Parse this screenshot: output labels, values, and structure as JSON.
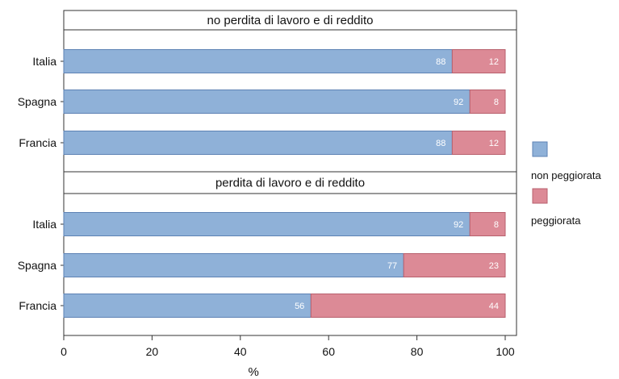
{
  "chart_data": {
    "type": "bar",
    "orientation": "horizontal",
    "stacked": true,
    "xlabel": "%",
    "xlim": [
      0,
      100
    ],
    "xticks": [
      0,
      20,
      40,
      60,
      80,
      100
    ],
    "grid": false,
    "legend_position": "right",
    "series": [
      {
        "name": "non peggiorata",
        "color": "#8fb1d8"
      },
      {
        "name": "peggiorata",
        "color": "#dc8a96"
      }
    ],
    "panels": [
      {
        "title": "no perdita di lavoro e di reddito",
        "rows": [
          {
            "category": "Italia",
            "values": [
              88,
              12
            ]
          },
          {
            "category": "Spagna",
            "values": [
              92,
              8
            ]
          },
          {
            "category": "Francia",
            "values": [
              88,
              12
            ]
          }
        ]
      },
      {
        "title": "perdita di lavoro e di reddito",
        "rows": [
          {
            "category": "Italia",
            "values": [
              92,
              8
            ]
          },
          {
            "category": "Spagna",
            "values": [
              77,
              23
            ]
          },
          {
            "category": "Francia",
            "values": [
              56,
              44
            ]
          }
        ]
      }
    ]
  }
}
